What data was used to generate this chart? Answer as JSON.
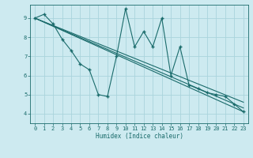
{
  "xlabel": "Humidex (Indice chaleur)",
  "bg_color": "#cdeaf0",
  "grid_color": "#aad4dc",
  "line_color": "#1a6b6b",
  "xlim": [
    -0.5,
    23.5
  ],
  "ylim": [
    3.5,
    9.7
  ],
  "yticks": [
    4,
    5,
    6,
    7,
    8,
    9
  ],
  "xticks": [
    0,
    1,
    2,
    3,
    4,
    5,
    6,
    7,
    8,
    9,
    10,
    11,
    12,
    13,
    14,
    15,
    16,
    17,
    18,
    19,
    20,
    21,
    22,
    23
  ],
  "series1_x": [
    0,
    1,
    2,
    3,
    4,
    5,
    6,
    7,
    8,
    9,
    10,
    11,
    12,
    13,
    14,
    15,
    16,
    17,
    18,
    19,
    20,
    21,
    22,
    23
  ],
  "series1_y": [
    9.0,
    9.2,
    8.7,
    7.9,
    7.3,
    6.6,
    6.3,
    5.0,
    4.9,
    7.0,
    9.5,
    7.5,
    8.3,
    7.5,
    9.0,
    6.0,
    7.5,
    5.5,
    5.3,
    5.1,
    5.0,
    4.9,
    4.5,
    4.1
  ],
  "trend_lines": [
    [
      [
        0,
        23
      ],
      [
        9.0,
        4.1
      ]
    ],
    [
      [
        0,
        23
      ],
      [
        9.0,
        4.3
      ]
    ],
    [
      [
        0,
        23
      ],
      [
        9.0,
        4.6
      ]
    ]
  ]
}
